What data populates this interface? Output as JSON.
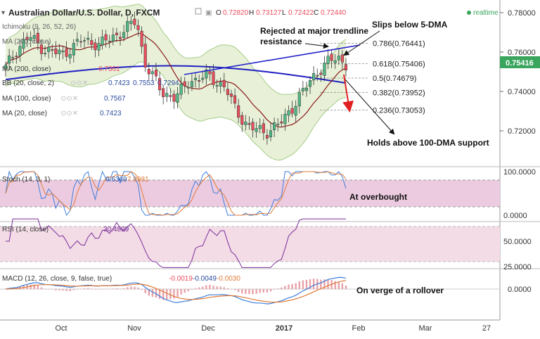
{
  "header": {
    "symbol_title": "Australian Dollar/U.S. Dollar, D, FXCM",
    "ohlc": {
      "O": "0.72820",
      "H": "0.73127",
      "L": "0.72422",
      "C": "0.72440"
    },
    "realtime_label": "realtime"
  },
  "indicators": {
    "ichimoku": {
      "label": "Ichimoku (9, 26, 52, 26)"
    },
    "ma200": {
      "label": "MA (200, close)",
      "value": "0.7361"
    },
    "bb": {
      "label": "BB (20, close, 2)",
      "values": [
        "0.7423",
        "0.7553",
        "0.7294"
      ]
    },
    "ma100": {
      "label": "MA (100, close)",
      "value": "0.7567"
    },
    "ma20": {
      "label": "MA (20, close)",
      "value": "0.7423"
    },
    "stoch": {
      "label": "Stoch (14, 3, 1)",
      "values": [
        "0.6369",
        "7.9981"
      ]
    },
    "rsi": {
      "label": "RSI (14, close)",
      "value": "30.4899"
    },
    "macd": {
      "label": "MACD (12, 26, close, 9, false, true)",
      "values": [
        "-0.0019",
        "-0.0049",
        "-0.0030"
      ]
    }
  },
  "annotations": {
    "rejected": [
      "Rejected at major trendline",
      "resistance"
    ],
    "slips": "Slips below 5-DMA",
    "holds": "Holds above 100-DMA support",
    "overbought": "At overbought",
    "rollover": "On verge of a rollover"
  },
  "fib_levels": [
    {
      "label": "0.786(0.76441)",
      "price": 0.76441
    },
    {
      "label": "0.618(0.75406)",
      "price": 0.75406
    },
    {
      "label": "0.5(0.74679)",
      "price": 0.74679
    },
    {
      "label": "0.382(0.73952)",
      "price": 0.73952
    },
    {
      "label": "0.236(0.73053)",
      "price": 0.73053
    }
  ],
  "price_axis": {
    "ticks": [
      {
        "label": "0.78000",
        "value": 0.78
      },
      {
        "label": "0.76000",
        "value": 0.76
      },
      {
        "label": "0.74000",
        "value": 0.74
      },
      {
        "label": "0.72000",
        "value": 0.72
      }
    ],
    "current": {
      "label": "0.75416",
      "value": 0.75416
    }
  },
  "stoch_axis": {
    "ticks": [
      {
        "label": "100.0000",
        "value": 100
      },
      {
        "label": "0.0000",
        "value": 0
      }
    ]
  },
  "rsi_axis": {
    "ticks": [
      {
        "label": "50.0000",
        "value": 50
      },
      {
        "label": "25.0000",
        "value": 25
      }
    ]
  },
  "macd_axis": {
    "ticks": [
      {
        "label": "0.0000",
        "value": 0
      }
    ]
  },
  "x_axis": {
    "labels": [
      "Oct",
      "Nov",
      "Dec",
      "2017",
      "Feb",
      "Mar",
      "27"
    ]
  },
  "colors": {
    "up_candle": "#53b987",
    "down_candle": "#eb4d5c",
    "ma200": "#2020c0",
    "ma20": "#8b1a1a",
    "bb_fill": "#e8f1d8",
    "bb_line": "#a6cc8a",
    "stoch_band": "#eccbe0",
    "rsi_band": "#f3dce6",
    "trend": "#2222cc",
    "arrow": "#e02020"
  },
  "chart_data": {
    "type": "candlestick",
    "title": "Australian Dollar/U.S. Dollar, D, FXCM",
    "period": "daily",
    "x_range": [
      "Sep 2016",
      "Mar 2017"
    ],
    "ylim": [
      0.706,
      0.785
    ],
    "close_path": [
      {
        "date": "2016-09-19",
        "close": 0.752
      },
      {
        "date": "2016-09-23",
        "close": 0.761
      },
      {
        "date": "2016-09-28",
        "close": 0.768
      },
      {
        "date": "2016-10-04",
        "close": 0.761
      },
      {
        "date": "2016-10-11",
        "close": 0.759
      },
      {
        "date": "2016-10-18",
        "close": 0.766
      },
      {
        "date": "2016-10-25",
        "close": 0.764
      },
      {
        "date": "2016-11-01",
        "close": 0.769
      },
      {
        "date": "2016-11-08",
        "close": 0.776
      },
      {
        "date": "2016-11-11",
        "close": 0.755
      },
      {
        "date": "2016-11-18",
        "close": 0.739
      },
      {
        "date": "2016-11-23",
        "close": 0.737
      },
      {
        "date": "2016-11-28",
        "close": 0.745
      },
      {
        "date": "2016-12-05",
        "close": 0.748
      },
      {
        "date": "2016-12-12",
        "close": 0.742
      },
      {
        "date": "2016-12-16",
        "close": 0.73
      },
      {
        "date": "2016-12-21",
        "close": 0.722
      },
      {
        "date": "2016-12-27",
        "close": 0.719
      },
      {
        "date": "2017-01-03",
        "close": 0.725
      },
      {
        "date": "2017-01-09",
        "close": 0.737
      },
      {
        "date": "2017-01-16",
        "close": 0.75
      },
      {
        "date": "2017-01-20",
        "close": 0.755
      },
      {
        "date": "2017-01-24",
        "close": 0.757
      },
      {
        "date": "2017-01-27",
        "close": 0.754
      }
    ],
    "stoch_last": [
      0.6369,
      7.9981
    ],
    "rsi_last": 30.4899,
    "macd_last": [
      -0.0019,
      -0.0049,
      -0.003
    ]
  }
}
